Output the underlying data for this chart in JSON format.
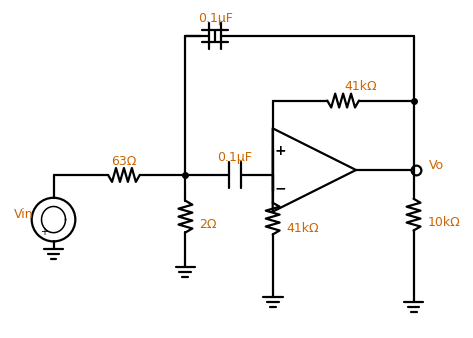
{
  "bg_color": "#ffffff",
  "line_color": "#000000",
  "label_color": "#cc6600",
  "labels": {
    "vin": "Vin",
    "r1": "63Ω",
    "r2": "2Ω",
    "r3": "41kΩ",
    "r4": "41kΩ",
    "r5": "10kΩ",
    "c1": "0.1μF",
    "c2": "0.1μF",
    "vo": "Vo"
  },
  "figsize": [
    4.73,
    3.38
  ],
  "dpi": 100
}
